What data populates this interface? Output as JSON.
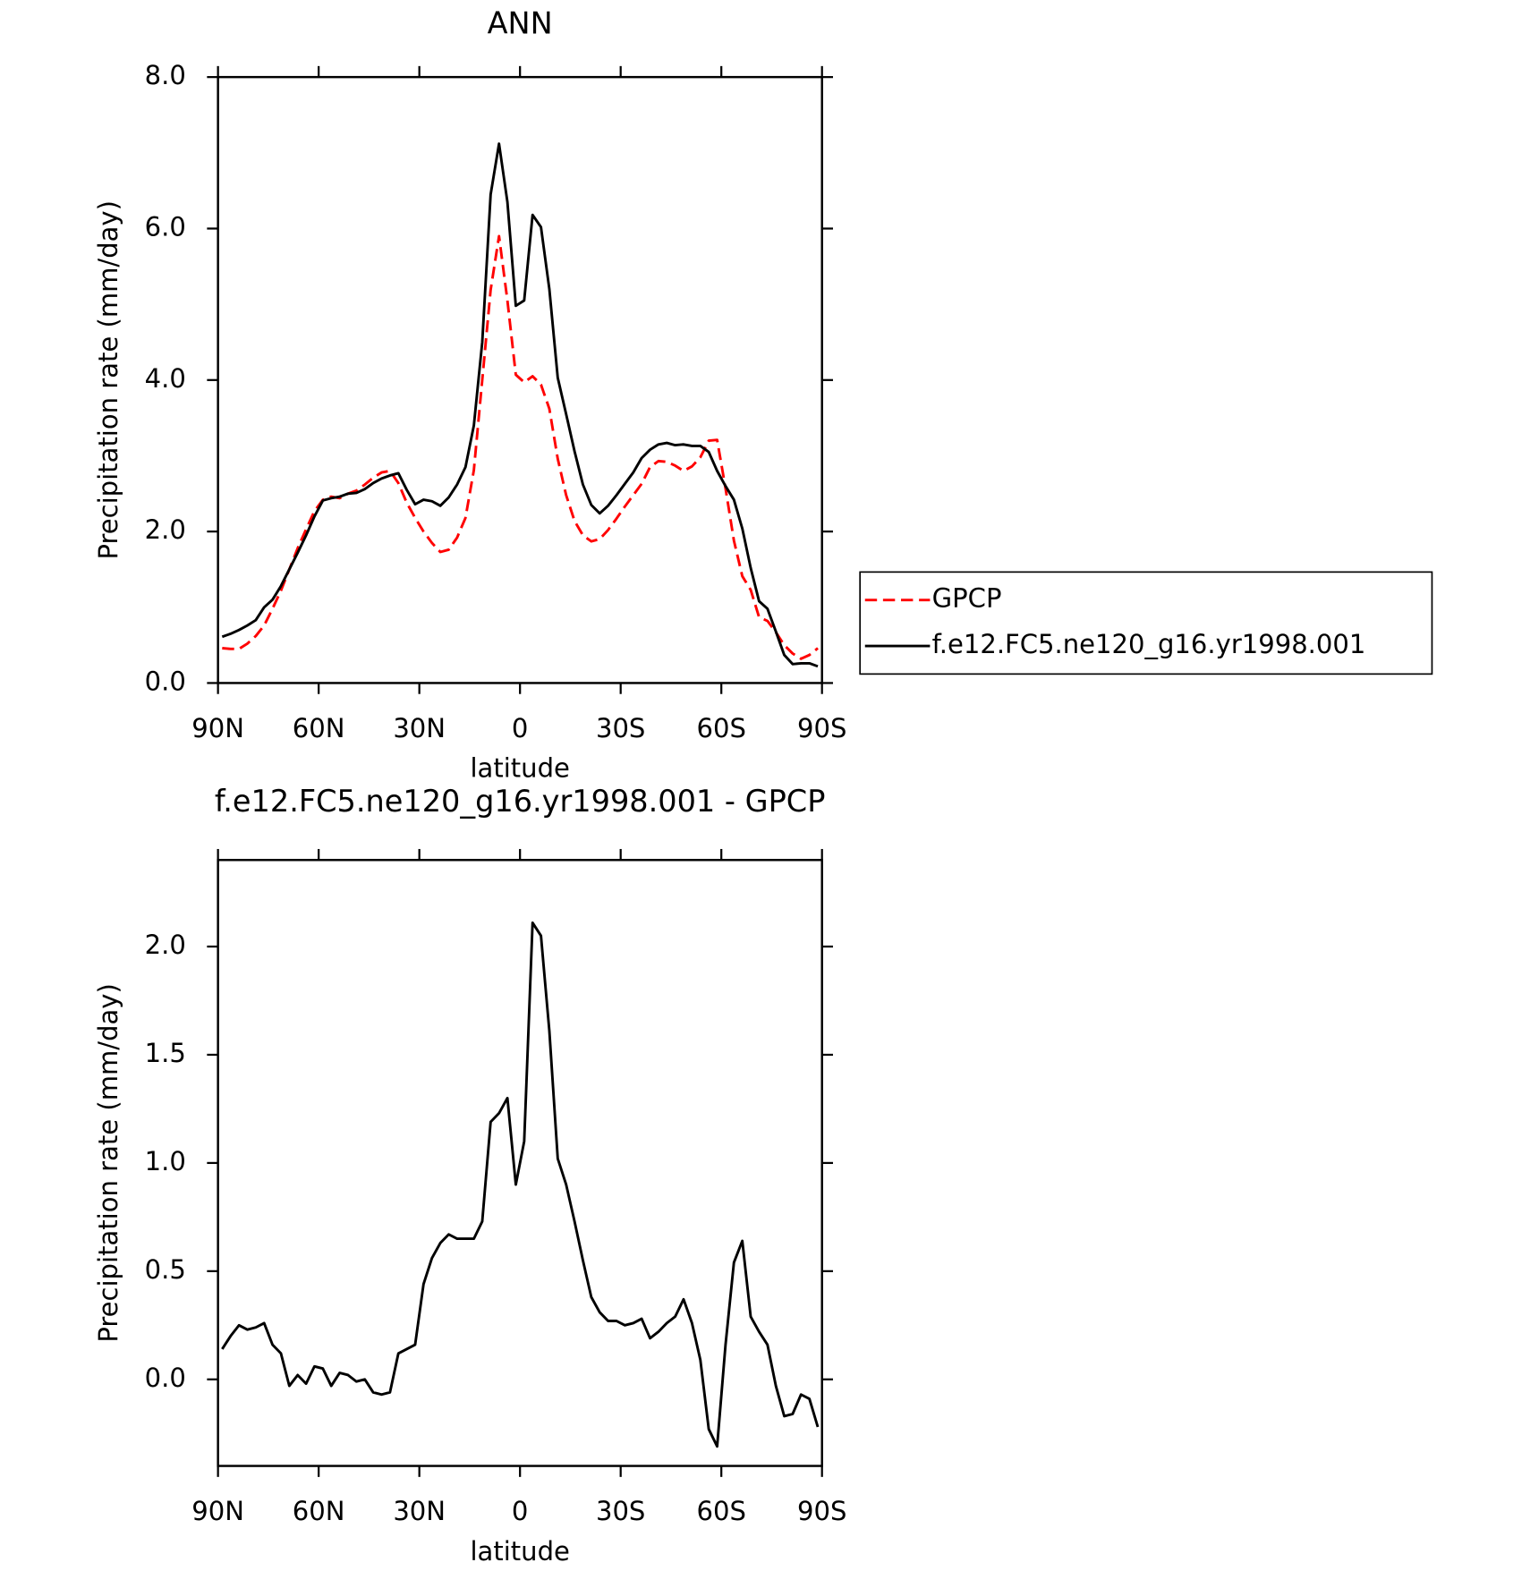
{
  "chart_data": [
    {
      "type": "line",
      "title": "ANN",
      "xlabel": "latitude",
      "ylabel": "Precipitation rate (mm/day)",
      "x": [
        88.75,
        86.25,
        83.75,
        81.25,
        78.75,
        76.25,
        73.75,
        71.25,
        68.75,
        66.25,
        63.75,
        61.25,
        58.75,
        56.25,
        53.75,
        51.25,
        48.75,
        46.25,
        43.75,
        41.25,
        38.75,
        36.25,
        33.75,
        31.25,
        28.75,
        26.25,
        23.75,
        21.25,
        18.75,
        16.25,
        13.75,
        11.25,
        8.75,
        6.25,
        3.75,
        1.25,
        -1.25,
        -3.75,
        -6.25,
        -8.75,
        -11.25,
        -13.75,
        -16.25,
        -18.75,
        -21.25,
        -23.75,
        -26.25,
        -28.75,
        -31.25,
        -33.75,
        -36.25,
        -38.75,
        -41.25,
        -43.75,
        -46.25,
        -48.75,
        -51.25,
        -53.75,
        -56.25,
        -58.75,
        -61.25,
        -63.75,
        -66.25,
        -68.75,
        -71.25,
        -73.75,
        -76.25,
        -78.75,
        -81.25,
        -83.75,
        -86.25,
        -88.75
      ],
      "series": [
        {
          "name": "GPCP",
          "color": "#ff0000",
          "dashed": true,
          "values": [
            0.46,
            0.45,
            0.45,
            0.52,
            0.62,
            0.76,
            0.98,
            1.22,
            1.5,
            1.78,
            2.03,
            2.27,
            2.42,
            2.46,
            2.44,
            2.5,
            2.54,
            2.62,
            2.71,
            2.78,
            2.8,
            2.64,
            2.38,
            2.18,
            2.0,
            1.85,
            1.73,
            1.76,
            1.92,
            2.18,
            2.81,
            4.0,
            5.19,
            5.9,
            5.05,
            4.07,
            3.97,
            4.05,
            3.94,
            3.62,
            2.96,
            2.48,
            2.14,
            1.95,
            1.87,
            1.9,
            2.02,
            2.17,
            2.33,
            2.48,
            2.63,
            2.85,
            2.93,
            2.92,
            2.87,
            2.8,
            2.86,
            2.98,
            3.2,
            3.21,
            2.57,
            1.88,
            1.41,
            1.23,
            0.87,
            0.82,
            0.67,
            0.5,
            0.39,
            0.32,
            0.37,
            0.46
          ]
        },
        {
          "name": "f.e12.FC5.ne120_g16.yr1998.001",
          "color": "#000000",
          "dashed": false,
          "values": [
            0.61,
            0.65,
            0.7,
            0.76,
            0.83,
            1.0,
            1.1,
            1.28,
            1.5,
            1.72,
            1.95,
            2.2,
            2.41,
            2.44,
            2.46,
            2.5,
            2.51,
            2.56,
            2.64,
            2.7,
            2.74,
            2.77,
            2.55,
            2.36,
            2.42,
            2.4,
            2.34,
            2.45,
            2.62,
            2.85,
            3.4,
            4.5,
            6.45,
            7.12,
            6.35,
            4.98,
            5.05,
            6.18,
            6.02,
            5.2,
            4.03,
            3.55,
            3.06,
            2.62,
            2.35,
            2.24,
            2.34,
            2.48,
            2.63,
            2.78,
            2.97,
            3.08,
            3.15,
            3.17,
            3.14,
            3.15,
            3.13,
            3.13,
            3.05,
            2.8,
            2.6,
            2.42,
            2.04,
            1.52,
            1.08,
            0.98,
            0.68,
            0.37,
            0.25,
            0.26,
            0.26,
            0.22
          ]
        }
      ],
      "xlim": [
        90,
        -90
      ],
      "xticks": [
        {
          "value": 90,
          "label": "90N"
        },
        {
          "value": 60,
          "label": "60N"
        },
        {
          "value": 30,
          "label": "30N"
        },
        0,
        {
          "value": -30,
          "label": "30S"
        },
        {
          "value": -60,
          "label": "60S"
        },
        {
          "value": -90,
          "label": "90S"
        }
      ],
      "ylim": [
        0,
        8
      ],
      "yticks": [
        {
          "value": 0,
          "label": "0.0"
        },
        {
          "value": 2,
          "label": "2.0"
        },
        {
          "value": 4,
          "label": "4.0"
        },
        {
          "value": 6,
          "label": "6.0"
        },
        {
          "value": 8,
          "label": "8.0"
        }
      ],
      "legend": "right"
    },
    {
      "type": "line",
      "title": "f.e12.FC5.ne120_g16.yr1998.001 - GPCP",
      "xlabel": "latitude",
      "ylabel": "Precipitation rate (mm/day)",
      "x": [
        88.75,
        86.25,
        83.75,
        81.25,
        78.75,
        76.25,
        73.75,
        71.25,
        68.75,
        66.25,
        63.75,
        61.25,
        58.75,
        56.25,
        53.75,
        51.25,
        48.75,
        46.25,
        43.75,
        41.25,
        38.75,
        36.25,
        33.75,
        31.25,
        28.75,
        26.25,
        23.75,
        21.25,
        18.75,
        16.25,
        13.75,
        11.25,
        8.75,
        6.25,
        3.75,
        1.25,
        -1.25,
        -3.75,
        -6.25,
        -8.75,
        -11.25,
        -13.75,
        -16.25,
        -18.75,
        -21.25,
        -23.75,
        -26.25,
        -28.75,
        -31.25,
        -33.75,
        -36.25,
        -38.75,
        -41.25,
        -43.75,
        -46.25,
        -48.75,
        -51.25,
        -53.75,
        -56.25,
        -58.75,
        -61.25,
        -63.75,
        -66.25,
        -68.75,
        -71.25,
        -73.75,
        -76.25,
        -78.75,
        -81.25,
        -83.75,
        -86.25,
        -88.75
      ],
      "color": "#000000",
      "values": [
        0.14,
        0.2,
        0.25,
        0.23,
        0.24,
        0.26,
        0.16,
        0.12,
        -0.03,
        0.02,
        -0.02,
        0.06,
        0.05,
        -0.03,
        0.03,
        0.02,
        -0.01,
        0.0,
        -0.06,
        -0.07,
        -0.06,
        0.12,
        0.14,
        0.16,
        0.44,
        0.56,
        0.63,
        0.67,
        0.65,
        0.65,
        0.65,
        0.73,
        1.19,
        1.23,
        1.3,
        0.9,
        1.1,
        2.11,
        2.05,
        1.61,
        1.02,
        0.9,
        0.73,
        0.55,
        0.38,
        0.31,
        0.27,
        0.27,
        0.25,
        0.26,
        0.28,
        0.19,
        0.22,
        0.26,
        0.29,
        0.37,
        0.26,
        0.09,
        -0.23,
        -0.31,
        0.16,
        0.54,
        0.64,
        0.29,
        0.22,
        0.16,
        -0.03,
        -0.17,
        -0.16,
        -0.07,
        -0.09,
        -0.22
      ],
      "xlim": [
        90,
        -90
      ],
      "xticks": [
        {
          "value": 90,
          "label": "90N"
        },
        {
          "value": 60,
          "label": "60N"
        },
        {
          "value": 30,
          "label": "30N"
        },
        0,
        {
          "value": -30,
          "label": "30S"
        },
        {
          "value": -60,
          "label": "60S"
        },
        {
          "value": -90,
          "label": "90S"
        }
      ],
      "ylim": [
        -0.4,
        2.4
      ],
      "yticks": [
        {
          "value": 0,
          "label": "0.0"
        },
        {
          "value": 0.5,
          "label": "0.5"
        },
        {
          "value": 1,
          "label": "1.0"
        },
        {
          "value": 1.5,
          "label": "1.5"
        },
        {
          "value": 2,
          "label": "2.0"
        }
      ]
    }
  ]
}
